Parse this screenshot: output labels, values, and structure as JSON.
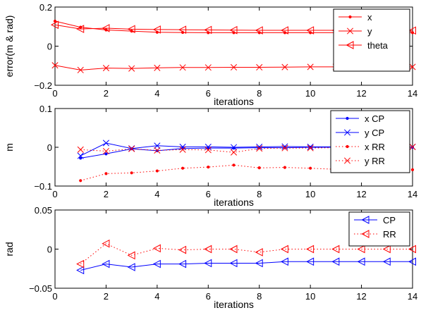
{
  "chart_data": [
    {
      "type": "line",
      "xlabel": "iterations",
      "ylabel": "error(m & rad)",
      "xlim": [
        0,
        14
      ],
      "ylim": [
        -0.2,
        0.2
      ],
      "xticks": [
        "0",
        "2",
        "4",
        "6",
        "8",
        "10",
        "12",
        "14"
      ],
      "yticks": [
        "−0.2",
        "0",
        "0.2"
      ],
      "grid": false,
      "legend_position": "top-right",
      "series": [
        {
          "name": "x",
          "color": "#ff0000",
          "marker": "dot",
          "dash": "solid",
          "x": [
            0,
            1,
            2,
            3,
            4,
            5,
            6,
            7,
            8,
            9,
            10,
            11,
            12,
            13,
            14
          ],
          "y": [
            0.128,
            0.097,
            0.083,
            0.077,
            0.071,
            0.07,
            0.069,
            0.069,
            0.069,
            0.069,
            0.069,
            0.069,
            0.069,
            0.069,
            0.069
          ]
        },
        {
          "name": "y",
          "color": "#ff0000",
          "marker": "cross",
          "dash": "solid",
          "x": [
            0,
            1,
            2,
            3,
            4,
            5,
            6,
            7,
            8,
            9,
            10,
            11,
            12,
            13,
            14
          ],
          "y": [
            -0.098,
            -0.122,
            -0.112,
            -0.114,
            -0.111,
            -0.109,
            -0.109,
            -0.108,
            -0.108,
            -0.107,
            -0.106,
            -0.106,
            -0.106,
            -0.106,
            -0.106
          ]
        },
        {
          "name": "theta",
          "color": "#ff0000",
          "marker": "triangle-left",
          "dash": "solid",
          "x": [
            0,
            1,
            2,
            3,
            4,
            5,
            6,
            7,
            8,
            9,
            10,
            11,
            12,
            13,
            14
          ],
          "y": [
            0.109,
            0.088,
            0.092,
            0.087,
            0.085,
            0.084,
            0.083,
            0.082,
            0.081,
            0.081,
            0.081,
            0.081,
            0.08,
            0.08,
            0.08
          ]
        }
      ]
    },
    {
      "type": "line",
      "xlabel": "iterations",
      "ylabel": "m",
      "xlim": [
        0,
        14
      ],
      "ylim": [
        -0.1,
        0.1
      ],
      "xticks": [
        "0",
        "2",
        "4",
        "6",
        "8",
        "10",
        "12",
        "14"
      ],
      "yticks": [
        "−0.1",
        "0",
        "0.1"
      ],
      "grid": false,
      "legend_position": "top-right",
      "series": [
        {
          "name": "x CP",
          "color": "#0000ff",
          "marker": "dot",
          "dash": "solid",
          "x": [
            1,
            2,
            3,
            4,
            5,
            6,
            7,
            8,
            9,
            10,
            11,
            12,
            13,
            14
          ],
          "y": [
            -0.028,
            -0.017,
            -0.004,
            -0.009,
            -0.003,
            -0.002,
            -0.002,
            -0.001,
            -0.001,
            0.0,
            0.0,
            0.0,
            0.0,
            0.0
          ]
        },
        {
          "name": "y CP",
          "color": "#0000ff",
          "marker": "cross",
          "dash": "solid",
          "x": [
            1,
            2,
            3,
            4,
            5,
            6,
            7,
            8,
            9,
            10,
            11,
            12,
            13,
            14
          ],
          "y": [
            -0.022,
            0.011,
            -0.003,
            0.004,
            0.001,
            0.001,
            0.0,
            0.001,
            0.002,
            0.001,
            0.001,
            0.001,
            0.001,
            0.001
          ]
        },
        {
          "name": "x RR",
          "color": "#ff0000",
          "marker": "dot",
          "dash": "dotted",
          "x": [
            1,
            2,
            3,
            4,
            5,
            6,
            7,
            8,
            9,
            10,
            11,
            12,
            13,
            14
          ],
          "y": [
            -0.086,
            -0.068,
            -0.066,
            -0.061,
            -0.054,
            -0.051,
            -0.046,
            -0.053,
            -0.052,
            -0.054,
            -0.057,
            -0.055,
            -0.057,
            -0.058
          ]
        },
        {
          "name": "y RR",
          "color": "#ff0000",
          "marker": "cross",
          "dash": "dotted",
          "x": [
            1,
            2,
            3,
            4,
            5,
            6,
            7,
            8,
            9,
            10,
            11,
            12,
            13,
            14
          ],
          "y": [
            -0.006,
            -0.01,
            -0.004,
            -0.008,
            -0.006,
            -0.007,
            -0.013,
            -0.003,
            -0.002,
            -0.002,
            -0.001,
            -0.001,
            -0.001,
            0.001
          ]
        }
      ]
    },
    {
      "type": "line",
      "xlabel": "iterations",
      "ylabel": "rad",
      "xlim": [
        0,
        14
      ],
      "ylim": [
        -0.05,
        0.05
      ],
      "xticks": [
        "0",
        "2",
        "4",
        "6",
        "8",
        "10",
        "12",
        "14"
      ],
      "yticks": [
        "−0.05",
        "0",
        "0.05"
      ],
      "grid": false,
      "legend_position": "top-right",
      "series": [
        {
          "name": "CP",
          "color": "#0000ff",
          "marker": "triangle-left",
          "dash": "solid",
          "x": [
            1,
            2,
            3,
            4,
            5,
            6,
            7,
            8,
            9,
            10,
            11,
            12,
            13,
            14
          ],
          "y": [
            -0.027,
            -0.019,
            -0.023,
            -0.019,
            -0.019,
            -0.018,
            -0.018,
            -0.018,
            -0.016,
            -0.016,
            -0.016,
            -0.016,
            -0.016,
            -0.016
          ]
        },
        {
          "name": "RR",
          "color": "#ff0000",
          "marker": "triangle-left",
          "dash": "dotted",
          "x": [
            1,
            2,
            3,
            4,
            5,
            6,
            7,
            8,
            9,
            10,
            11,
            12,
            13,
            14
          ],
          "y": [
            -0.019,
            0.007,
            -0.008,
            0.001,
            -0.001,
            0.0,
            0.0,
            -0.004,
            0.0,
            0.0,
            0.0,
            0.0,
            0.0,
            0.0
          ]
        }
      ]
    }
  ]
}
